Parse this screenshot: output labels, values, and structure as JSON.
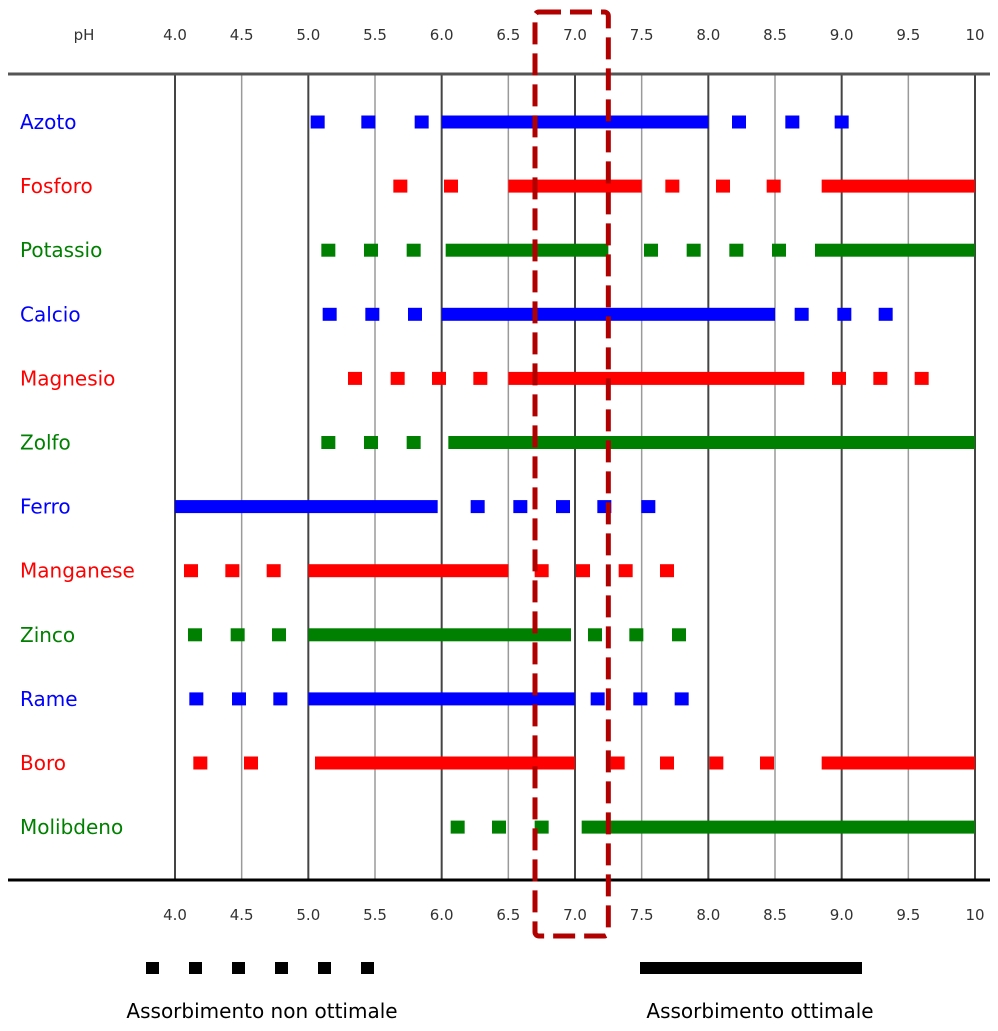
{
  "chart_data": {
    "type": "range-bar",
    "axis_label": "pH",
    "x_ticks": [
      "4.0",
      "4.5",
      "5.0",
      "5.5",
      "6.0",
      "6.5",
      "7.0",
      "7.5",
      "8.0",
      "8.5",
      "9.0",
      "9.5",
      "10"
    ],
    "xlim": [
      4.0,
      10.0
    ],
    "grid": true,
    "highlight_range": [
      6.7,
      7.25
    ],
    "colors": {
      "blue": "#0000ff",
      "red": "#ff0000",
      "green": "#008000",
      "highlight": "#b00000"
    },
    "nutrients": [
      {
        "name": "Azoto",
        "color": "#0000ff",
        "solid": [
          [
            6.0,
            8.0
          ]
        ],
        "dots": [
          5.07,
          5.45,
          5.85,
          8.23,
          8.63,
          9.0
        ]
      },
      {
        "name": "Fosforo",
        "color": "#ff0000",
        "solid": [
          [
            6.5,
            7.5
          ],
          [
            8.85,
            10.0
          ]
        ],
        "dots": [
          5.69,
          6.07,
          7.73,
          8.11,
          8.49
        ]
      },
      {
        "name": "Potassio",
        "color": "#008000",
        "solid": [
          [
            6.03,
            7.25
          ],
          [
            8.8,
            10.0
          ]
        ],
        "dots": [
          5.15,
          5.47,
          5.79,
          7.57,
          7.89,
          8.21,
          8.53
        ]
      },
      {
        "name": "Calcio",
        "color": "#0000ff",
        "solid": [
          [
            6.0,
            8.5
          ]
        ],
        "dots": [
          5.16,
          5.48,
          5.8,
          8.7,
          9.02,
          9.33
        ]
      },
      {
        "name": "Magnesio",
        "color": "#ff0000",
        "solid": [
          [
            6.5,
            8.72
          ]
        ],
        "dots": [
          5.35,
          5.67,
          5.98,
          6.29,
          8.98,
          9.29,
          9.6
        ]
      },
      {
        "name": "Zolfo",
        "color": "#008000",
        "solid": [
          [
            6.05,
            10.0
          ]
        ],
        "dots": [
          5.15,
          5.47,
          5.79
        ]
      },
      {
        "name": "Ferro",
        "color": "#0000ff",
        "solid": [
          [
            4.0,
            5.97
          ]
        ],
        "dots": [
          6.27,
          6.59,
          6.91,
          7.22,
          7.55
        ]
      },
      {
        "name": "Manganese",
        "color": "#ff0000",
        "solid": [
          [
            5.0,
            6.5
          ]
        ],
        "dots": [
          4.12,
          4.43,
          4.74,
          6.75,
          7.06,
          7.38,
          7.69
        ]
      },
      {
        "name": "Zinco",
        "color": "#008000",
        "solid": [
          [
            5.0,
            6.97
          ]
        ],
        "dots": [
          4.15,
          4.47,
          4.78,
          7.15,
          7.46,
          7.78
        ]
      },
      {
        "name": "Rame",
        "color": "#0000ff",
        "solid": [
          [
            5.0,
            7.0
          ]
        ],
        "dots": [
          4.16,
          4.48,
          4.79,
          7.17,
          7.49,
          7.8
        ]
      },
      {
        "name": "Boro",
        "color": "#ff0000",
        "solid": [
          [
            5.05,
            7.0
          ],
          [
            8.85,
            10.0
          ]
        ],
        "dots": [
          4.19,
          4.57,
          7.32,
          7.69,
          8.06,
          8.44
        ]
      },
      {
        "name": "Molibdeno",
        "color": "#008000",
        "solid": [
          [
            7.05,
            10.0
          ]
        ],
        "dots": [
          6.12,
          6.43,
          6.75
        ]
      }
    ],
    "legend": {
      "dotted_label": "Assorbimento non ottimale",
      "solid_label": "Assorbimento ottimale",
      "color": "#000000"
    }
  }
}
